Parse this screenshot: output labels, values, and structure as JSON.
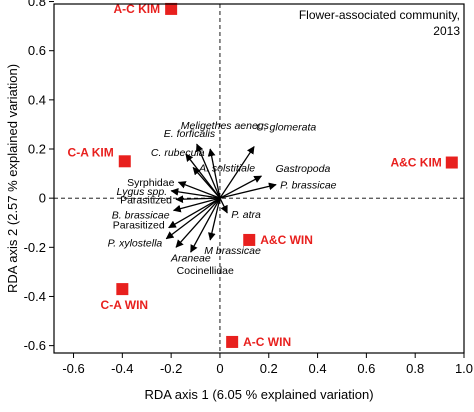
{
  "chart_data": {
    "type": "scatter",
    "title": "Flower-associated community,",
    "subtitle": "2013",
    "xlabel": "RDA axis 1 (6.05 % explained variation)",
    "ylabel": "RDA axis 2 (2.57 % explained variation)",
    "xlim": [
      -0.68,
      1.0
    ],
    "ylim": [
      -0.63,
      0.79
    ],
    "xticks": [
      -0.6,
      -0.4,
      -0.2,
      0,
      0.2,
      0.4,
      0.6,
      0.8,
      1.0
    ],
    "xtick_labels": [
      "-0.6",
      "-0.4",
      "-0.2",
      "0",
      "0.2",
      "0.4",
      "0.6",
      "0.8",
      "1.0"
    ],
    "yticks": [
      -0.6,
      -0.4,
      -0.2,
      0,
      0.2,
      0.4,
      0.6,
      0.8
    ],
    "ytick_labels": [
      "-0.6",
      "-0.4",
      "-0.2",
      "0",
      "0.2",
      "0.4",
      "0.6",
      "0.8"
    ],
    "grid": false,
    "reference_lines": [
      {
        "axis": "x",
        "value": 0,
        "style": "dashed"
      },
      {
        "axis": "y",
        "value": 0,
        "style": "dashed"
      }
    ],
    "marker_color": "#e8201e",
    "vector_color": "#000000",
    "samples": [
      {
        "name": "A-C KIM",
        "x": -0.2,
        "y": 0.77
      },
      {
        "name": "C-A KIM",
        "x": -0.39,
        "y": 0.15
      },
      {
        "name": "A&C KIM",
        "x": 0.95,
        "y": 0.145
      },
      {
        "name": "A&C WIN",
        "x": 0.12,
        "y": -0.17
      },
      {
        "name": "C-A WIN",
        "x": -0.4,
        "y": -0.37
      },
      {
        "name": "A-C WIN",
        "x": 0.05,
        "y": -0.585
      }
    ],
    "vectors": [
      {
        "name": "E. forficalis",
        "italic": true,
        "x": -0.095,
        "y": 0.22
      },
      {
        "name": "Meligethes aeneus",
        "italic": true,
        "x": -0.04,
        "y": 0.2
      },
      {
        "name": "C. rubecula",
        "italic": true,
        "x": -0.14,
        "y": 0.18
      },
      {
        "name": "A. solstitiale",
        "italic": true,
        "x": -0.11,
        "y": 0.125
      },
      {
        "name": "C. glomerata",
        "italic": true,
        "x": 0.14,
        "y": 0.21
      },
      {
        "name": "Syrphidae",
        "italic": false,
        "x": -0.17,
        "y": 0.065
      },
      {
        "name": "Lygus spp.",
        "italic": true,
        "x": -0.2,
        "y": 0.03
      },
      {
        "name": "Gastropoda",
        "italic": true,
        "x": 0.17,
        "y": 0.09
      },
      {
        "name": "P. brassicae",
        "italic": true,
        "x": 0.23,
        "y": 0.055
      },
      {
        "name": "Parasitized",
        "italic": false,
        "x": -0.18,
        "y": -0.005
      },
      {
        "name": "B. brassicae",
        "italic": true,
        "x": -0.19,
        "y": -0.05
      },
      {
        "name": "P. atra",
        "italic": true,
        "x": 0.03,
        "y": -0.06
      },
      {
        "name": "Parasitized",
        "italic": false,
        "x": -0.21,
        "y": -0.12
      },
      {
        "name": "P. xylostella",
        "italic": true,
        "x": -0.22,
        "y": -0.165
      },
      {
        "name": "M brassicae",
        "italic": true,
        "x": -0.04,
        "y": -0.17
      },
      {
        "name": "Araneae",
        "italic": true,
        "x": -0.18,
        "y": -0.2
      },
      {
        "name": "Cocinellidae",
        "italic": false,
        "x": -0.12,
        "y": -0.22
      }
    ]
  }
}
